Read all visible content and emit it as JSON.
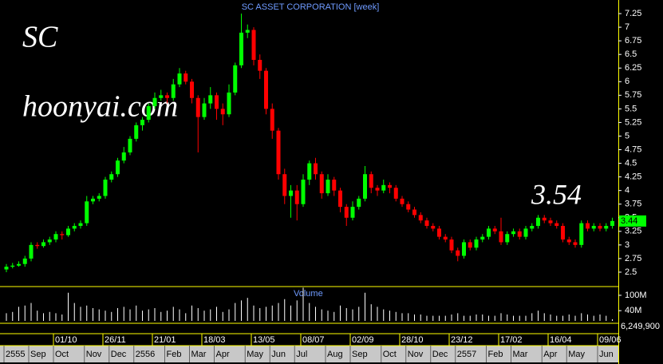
{
  "chart_data": {
    "type": "candlestick",
    "title": "SC ASSET CORPORATION [week]",
    "annotations": [
      "SC",
      "hoonyai.com",
      "3.54"
    ],
    "categories": [
      null,
      null,
      null,
      null,
      null,
      null,
      null,
      null,
      "01/10",
      null,
      null,
      null,
      null,
      null,
      null,
      null,
      "26/11",
      null,
      null,
      null,
      null,
      null,
      null,
      null,
      "21/01",
      null,
      null,
      null,
      null,
      null,
      null,
      null,
      "18/03",
      null,
      null,
      null,
      null,
      null,
      null,
      null,
      "13/05",
      null,
      null,
      null,
      null,
      null,
      null,
      null,
      "08/07",
      null,
      null,
      null,
      null,
      null,
      null,
      null,
      "02/09",
      null,
      null,
      null,
      null,
      null,
      null,
      null,
      "28/10",
      null,
      null,
      null,
      null,
      null,
      null,
      null,
      "23/12",
      null,
      null,
      null,
      null,
      null,
      null,
      null,
      "17/02",
      null,
      null,
      null,
      null,
      null,
      null,
      null,
      "16/04",
      null,
      null,
      null,
      null,
      null,
      null,
      null,
      "09/06",
      null,
      null
    ],
    "months": [
      "2555",
      null,
      null,
      null,
      "Sep",
      null,
      null,
      null,
      "Oct",
      null,
      null,
      null,
      null,
      "Nov",
      null,
      null,
      null,
      "Dec",
      null,
      null,
      null,
      "2556",
      null,
      null,
      null,
      null,
      "Feb",
      null,
      null,
      null,
      "Mar",
      null,
      null,
      null,
      "Apr",
      null,
      null,
      null,
      null,
      "May",
      null,
      null,
      null,
      "Jun",
      null,
      null,
      null,
      "Jul",
      null,
      null,
      null,
      null,
      "Aug",
      null,
      null,
      null,
      "Sep",
      null,
      null,
      null,
      null,
      "Oct",
      null,
      null,
      null,
      "Nov",
      null,
      null,
      null,
      "Dec",
      null,
      null,
      null,
      "2557",
      null,
      null,
      null,
      null,
      "Feb",
      null,
      null,
      null,
      "Mar",
      null,
      null,
      null,
      null,
      "Apr",
      null,
      null,
      null,
      "May",
      null,
      null,
      null,
      null,
      "Jun",
      null,
      null
    ],
    "open": [
      2.55,
      2.6,
      2.62,
      2.65,
      2.75,
      3.0,
      2.98,
      3.05,
      3.1,
      3.2,
      3.18,
      3.3,
      3.35,
      3.4,
      3.8,
      3.85,
      3.9,
      4.2,
      4.3,
      4.55,
      4.7,
      4.95,
      5.2,
      5.3,
      5.55,
      5.7,
      5.75,
      5.7,
      5.95,
      6.15,
      6.0,
      5.7,
      5.35,
      5.6,
      5.75,
      5.5,
      5.4,
      5.8,
      6.3,
      6.9,
      6.95,
      6.4,
      6.2,
      5.5,
      5.1,
      4.3,
      3.9,
      4.0,
      3.75,
      4.2,
      4.5,
      4.3,
      3.95,
      4.2,
      4.0,
      3.7,
      3.5,
      3.7,
      3.85,
      4.3,
      4.05,
      4.0,
      4.1,
      4.05,
      3.85,
      3.75,
      3.65,
      3.55,
      3.45,
      3.35,
      3.3,
      3.15,
      3.1,
      2.9,
      2.8,
      3.05,
      2.95,
      3.1,
      3.15,
      3.3,
      3.25,
      3.05,
      3.2,
      3.25,
      3.15,
      3.3,
      3.35,
      3.5,
      3.45,
      3.4,
      3.35,
      3.1,
      3.05,
      3.0,
      3.4,
      3.3,
      3.35,
      3.3,
      3.35
    ],
    "high": [
      2.65,
      2.67,
      2.7,
      2.8,
      3.05,
      3.05,
      3.1,
      3.15,
      3.25,
      3.25,
      3.35,
      3.4,
      3.45,
      3.9,
      3.9,
      3.95,
      4.25,
      4.35,
      4.6,
      4.8,
      5.0,
      5.25,
      5.35,
      5.6,
      5.8,
      5.85,
      5.8,
      6.05,
      6.25,
      6.2,
      6.05,
      5.75,
      5.7,
      5.9,
      5.8,
      5.6,
      5.95,
      6.35,
      7.25,
      7.05,
      7.0,
      6.5,
      6.25,
      5.6,
      5.15,
      4.4,
      4.1,
      4.1,
      4.3,
      4.55,
      4.6,
      4.35,
      4.3,
      4.25,
      4.05,
      3.75,
      3.8,
      3.9,
      4.45,
      4.35,
      4.1,
      4.2,
      4.15,
      4.1,
      3.9,
      3.8,
      3.7,
      3.6,
      3.5,
      3.4,
      3.35,
      3.2,
      3.15,
      2.95,
      3.1,
      3.1,
      3.15,
      3.2,
      3.35,
      3.35,
      3.5,
      3.25,
      3.3,
      3.3,
      3.35,
      3.4,
      3.55,
      3.55,
      3.5,
      3.45,
      3.4,
      3.15,
      3.1,
      3.45,
      3.45,
      3.4,
      3.4,
      3.4,
      3.5
    ],
    "low": [
      2.5,
      2.57,
      2.6,
      2.6,
      2.7,
      2.93,
      2.95,
      3.0,
      3.05,
      3.1,
      3.15,
      3.25,
      3.3,
      3.35,
      3.75,
      3.8,
      3.85,
      4.15,
      4.25,
      4.5,
      4.65,
      4.9,
      5.1,
      5.25,
      5.5,
      5.65,
      5.6,
      5.65,
      5.9,
      5.95,
      5.6,
      4.7,
      5.3,
      5.5,
      5.3,
      5.2,
      5.35,
      5.75,
      6.25,
      6.8,
      6.3,
      6.05,
      5.4,
      4.95,
      4.2,
      3.75,
      3.5,
      3.45,
      3.7,
      4.1,
      4.2,
      3.85,
      3.9,
      3.9,
      3.6,
      3.35,
      3.45,
      3.65,
      3.8,
      3.95,
      3.9,
      3.95,
      3.95,
      3.8,
      3.7,
      3.6,
      3.5,
      3.4,
      3.3,
      3.25,
      3.1,
      3.05,
      2.85,
      2.7,
      2.75,
      2.9,
      2.9,
      3.05,
      3.1,
      3.2,
      3.0,
      3.0,
      3.15,
      3.1,
      3.1,
      3.25,
      3.3,
      3.4,
      3.35,
      3.3,
      3.05,
      3.0,
      2.95,
      2.95,
      3.25,
      3.25,
      3.25,
      3.25,
      3.3
    ],
    "close": [
      2.6,
      2.62,
      2.65,
      2.75,
      3.0,
      2.98,
      3.05,
      3.1,
      3.2,
      3.18,
      3.3,
      3.35,
      3.4,
      3.8,
      3.85,
      3.9,
      4.2,
      4.3,
      4.55,
      4.7,
      4.95,
      5.2,
      5.3,
      5.55,
      5.7,
      5.75,
      5.7,
      5.95,
      6.15,
      6.0,
      5.7,
      5.35,
      5.6,
      5.75,
      5.5,
      5.4,
      5.8,
      6.3,
      6.9,
      6.95,
      6.4,
      6.2,
      5.5,
      5.1,
      4.3,
      3.9,
      4.0,
      3.75,
      4.2,
      4.5,
      4.3,
      3.95,
      4.2,
      4.0,
      3.7,
      3.5,
      3.7,
      3.85,
      4.3,
      4.05,
      4.0,
      4.1,
      4.05,
      3.85,
      3.75,
      3.65,
      3.55,
      3.45,
      3.35,
      3.3,
      3.15,
      3.1,
      2.9,
      2.8,
      3.05,
      2.95,
      3.1,
      3.15,
      3.3,
      3.25,
      3.05,
      3.2,
      3.25,
      3.15,
      3.3,
      3.35,
      3.5,
      3.45,
      3.4,
      3.35,
      3.1,
      3.05,
      3.0,
      3.4,
      3.3,
      3.35,
      3.3,
      3.35,
      3.44
    ],
    "last_price_label": "3.44",
    "up_color": "#00ff00",
    "down_color": "#ff0000",
    "ylim": [
      2.25,
      7.5
    ],
    "yticks": [
      2.5,
      2.75,
      3,
      3.25,
      3.5,
      3.75,
      4,
      4.25,
      4.5,
      4.75,
      5,
      5.25,
      5.5,
      5.75,
      6,
      6.25,
      6.5,
      6.75,
      7,
      7.25
    ],
    "volume": {
      "label": "Volume",
      "color": "#ffffff",
      "values": [
        30000000,
        35000000,
        55000000,
        60000000,
        70000000,
        40000000,
        30000000,
        35000000,
        30000000,
        25000000,
        110000000,
        70000000,
        55000000,
        60000000,
        50000000,
        45000000,
        40000000,
        35000000,
        50000000,
        55000000,
        45000000,
        60000000,
        40000000,
        45000000,
        50000000,
        35000000,
        40000000,
        55000000,
        45000000,
        30000000,
        60000000,
        50000000,
        40000000,
        45000000,
        55000000,
        35000000,
        45000000,
        70000000,
        80000000,
        90000000,
        60000000,
        50000000,
        55000000,
        60000000,
        70000000,
        85000000,
        60000000,
        80000000,
        130000000,
        70000000,
        55000000,
        45000000,
        40000000,
        35000000,
        60000000,
        50000000,
        45000000,
        55000000,
        110000000,
        65000000,
        55000000,
        45000000,
        40000000,
        35000000,
        30000000,
        30000000,
        25000000,
        25000000,
        20000000,
        20000000,
        20000000,
        20000000,
        25000000,
        30000000,
        20000000,
        20000000,
        25000000,
        25000000,
        20000000,
        20000000,
        30000000,
        25000000,
        20000000,
        20000000,
        20000000,
        30000000,
        40000000,
        30000000,
        25000000,
        20000000,
        20000000,
        25000000,
        20000000,
        30000000,
        25000000,
        20000000,
        25000000,
        20000000,
        6249900
      ],
      "last_label": "6,249,900",
      "ylim": [
        0,
        131000000
      ],
      "yticks": [
        {
          "value": 40000000,
          "label": "40M"
        },
        {
          "value": 100000000,
          "label": "100M"
        }
      ]
    }
  }
}
